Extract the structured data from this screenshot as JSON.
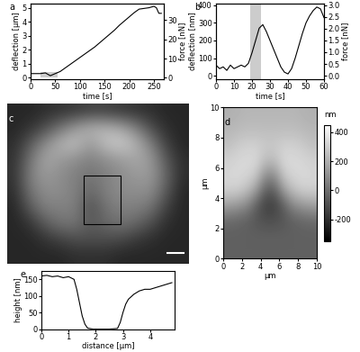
{
  "chart_data": [
    {
      "type": "line",
      "label": "a",
      "x_label": "time [s]",
      "y_label": "deflection [µm]",
      "y2_label": "force [nN]",
      "xlim": [
        0,
        270
      ],
      "xticks": [
        0,
        50,
        100,
        150,
        200,
        250
      ],
      "ylim": [
        -0.1,
        5.3
      ],
      "yticks": [
        0,
        1,
        2,
        3,
        4,
        5
      ],
      "y2lim": [
        -0.73,
        38.7
      ],
      "y2ticks": [
        0,
        10,
        20,
        30
      ],
      "shade": {
        "x": [
          20,
          55
        ],
        "y": [
          0,
          0.4
        ]
      },
      "series": [
        {
          "color": "#000000",
          "x": [
            0,
            10,
            20,
            30,
            40,
            50,
            60,
            70,
            80,
            90,
            100,
            110,
            120,
            130,
            140,
            150,
            160,
            170,
            180,
            190,
            200,
            210,
            220,
            230,
            240,
            250,
            255,
            260,
            265
          ],
          "values": [
            0.3,
            0.3,
            0.3,
            0.35,
            0.15,
            0.3,
            0.45,
            0.7,
            0.95,
            1.2,
            1.45,
            1.7,
            1.95,
            2.2,
            2.5,
            2.8,
            3.1,
            3.4,
            3.75,
            4.05,
            4.35,
            4.65,
            4.9,
            4.95,
            5.0,
            5.1,
            5.0,
            4.6,
            4.6
          ]
        }
      ]
    },
    {
      "type": "line",
      "label": "b",
      "x_label": "time [s]",
      "y_label": "deflection [nm]",
      "y2_label": "force [nN]",
      "xlim": [
        0,
        60
      ],
      "xticks": [
        0,
        10,
        20,
        30,
        40,
        50,
        60
      ],
      "ylim": [
        -20,
        410
      ],
      "yticks": [
        0,
        100,
        200,
        300,
        400
      ],
      "y2lim": [
        -0.15,
        3.075
      ],
      "y2ticks": [
        {
          "value": 0,
          "label": "0.0"
        },
        {
          "value": 0.5,
          "label": "0.5"
        },
        {
          "value": 1,
          "label": "1.0"
        },
        {
          "value": 1.5,
          "label": "1.5"
        },
        {
          "value": 2,
          "label": "2.0"
        },
        {
          "value": 2.5,
          "label": "2.5"
        },
        {
          "value": 3,
          "label": "3.0"
        }
      ],
      "shade": {
        "x": [
          19,
          25
        ],
        "y": [
          -20,
          410
        ]
      },
      "series": [
        {
          "color": "#000000",
          "x": [
            0,
            2,
            4,
            6,
            8,
            10,
            12,
            14,
            16,
            18,
            20,
            22,
            24,
            26,
            28,
            30,
            32,
            34,
            36,
            38,
            40,
            42,
            44,
            46,
            48,
            50,
            52,
            54,
            56,
            58,
            60
          ],
          "values": [
            60,
            40,
            50,
            30,
            60,
            40,
            50,
            60,
            50,
            70,
            130,
            200,
            270,
            290,
            250,
            200,
            150,
            100,
            50,
            20,
            10,
            40,
            100,
            170,
            240,
            300,
            340,
            370,
            390,
            380,
            330
          ]
        }
      ]
    },
    {
      "type": "image",
      "label": "c",
      "cells": [
        [
          0.15,
          0.15,
          0.18,
          0.2,
          0.22,
          0.25,
          0.25,
          0.22,
          0.2,
          0.18,
          0.15,
          0.15
        ],
        [
          0.15,
          0.2,
          0.3,
          0.45,
          0.6,
          0.7,
          0.7,
          0.65,
          0.5,
          0.3,
          0.18,
          0.15
        ],
        [
          0.18,
          0.35,
          0.55,
          0.7,
          0.75,
          0.6,
          0.75,
          0.8,
          0.7,
          0.5,
          0.25,
          0.15
        ],
        [
          0.2,
          0.45,
          0.65,
          0.6,
          0.55,
          0.5,
          0.55,
          0.6,
          0.65,
          0.6,
          0.35,
          0.18
        ],
        [
          0.2,
          0.5,
          0.6,
          0.55,
          0.5,
          0.45,
          0.5,
          0.55,
          0.6,
          0.6,
          0.4,
          0.18
        ],
        [
          0.18,
          0.45,
          0.55,
          0.55,
          0.5,
          0.4,
          0.5,
          0.55,
          0.55,
          0.55,
          0.35,
          0.15
        ],
        [
          0.15,
          0.35,
          0.5,
          0.5,
          0.5,
          0.3,
          0.45,
          0.5,
          0.5,
          0.45,
          0.25,
          0.15
        ],
        [
          0.15,
          0.2,
          0.35,
          0.45,
          0.45,
          0.35,
          0.4,
          0.45,
          0.4,
          0.3,
          0.18,
          0.15
        ],
        [
          0.15,
          0.15,
          0.2,
          0.25,
          0.3,
          0.3,
          0.3,
          0.28,
          0.22,
          0.18,
          0.15,
          0.15
        ],
        [
          0.15,
          0.15,
          0.15,
          0.15,
          0.18,
          0.18,
          0.18,
          0.15,
          0.15,
          0.15,
          0.15,
          0.15
        ]
      ]
    },
    {
      "type": "heatmap",
      "label": "d",
      "x_label": "µm",
      "y_label": "µm",
      "xlim": [
        0,
        10
      ],
      "xticks": [
        0,
        2,
        4,
        6,
        8,
        10
      ],
      "ylim": [
        0,
        10
      ],
      "yticks": [
        0,
        2,
        4,
        6,
        8,
        10
      ],
      "colorbar_label": "nm",
      "colorbar_range": [
        -350,
        450
      ],
      "colorbar_ticks": [
        -200,
        0,
        200,
        400
      ],
      "cells": [
        [
          -50,
          -50,
          -50,
          -50,
          -50,
          -50,
          -50,
          -50,
          -50,
          -50
        ],
        [
          -50,
          -50,
          -50,
          -50,
          -50,
          -50,
          -50,
          -50,
          -50,
          -50
        ],
        [
          -20,
          -30,
          -50,
          -80,
          -100,
          -100,
          -80,
          -50,
          -30,
          -20
        ],
        [
          150,
          120,
          80,
          -50,
          -150,
          -150,
          -50,
          80,
          120,
          150
        ],
        [
          300,
          300,
          250,
          150,
          -50,
          -50,
          150,
          250,
          300,
          300
        ],
        [
          320,
          330,
          320,
          280,
          100,
          100,
          280,
          320,
          330,
          320
        ],
        [
          300,
          320,
          330,
          330,
          250,
          250,
          330,
          330,
          320,
          300
        ],
        [
          250,
          280,
          300,
          300,
          280,
          280,
          300,
          300,
          280,
          250
        ],
        [
          220,
          230,
          240,
          240,
          240,
          240,
          240,
          240,
          230,
          220
        ],
        [
          200,
          210,
          220,
          220,
          220,
          220,
          220,
          220,
          210,
          200
        ]
      ]
    },
    {
      "type": "line",
      "label": "e",
      "x_label": "distance [µm]",
      "y_label": "height [nm]",
      "xlim": [
        0,
        4.9
      ],
      "xticks": [
        0,
        1,
        2,
        3,
        4
      ],
      "ylim": [
        0,
        175
      ],
      "yticks": [
        0,
        50,
        100,
        150
      ],
      "series": [
        {
          "color": "#000000",
          "x": [
            0,
            0.2,
            0.4,
            0.6,
            0.8,
            1.0,
            1.2,
            1.3,
            1.4,
            1.5,
            1.6,
            1.7,
            1.9,
            2.2,
            2.5,
            2.8,
            2.9,
            3.0,
            3.1,
            3.2,
            3.4,
            3.6,
            3.8,
            4.0,
            4.2,
            4.4,
            4.6,
            4.8
          ],
          "values": [
            160,
            162,
            158,
            160,
            155,
            158,
            150,
            120,
            80,
            40,
            15,
            3,
            0,
            0,
            0,
            2,
            20,
            50,
            75,
            90,
            105,
            115,
            120,
            120,
            125,
            130,
            135,
            140
          ]
        }
      ]
    }
  ]
}
